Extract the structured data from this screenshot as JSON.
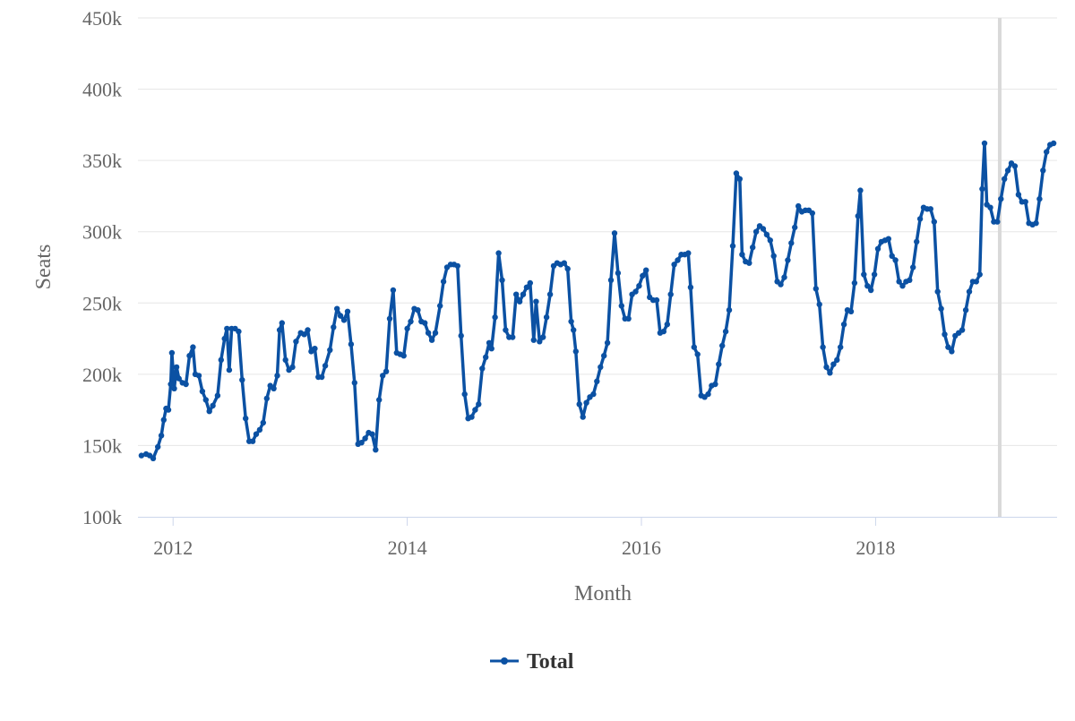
{
  "chart_data": {
    "type": "line",
    "xlabel": "Month",
    "ylabel": "Seats",
    "ylim": [
      100000,
      450000
    ],
    "xlim": [
      2011.7,
      2019.55
    ],
    "y_ticks": [
      {
        "value": 100000,
        "label": "100k"
      },
      {
        "value": 150000,
        "label": "150k"
      },
      {
        "value": 200000,
        "label": "200k"
      },
      {
        "value": 250000,
        "label": "250k"
      },
      {
        "value": 300000,
        "label": "300k"
      },
      {
        "value": 350000,
        "label": "350k"
      },
      {
        "value": 400000,
        "label": "400k"
      },
      {
        "value": 450000,
        "label": "450k"
      }
    ],
    "x_ticks": [
      {
        "value": 2012,
        "label": "2012"
      },
      {
        "value": 2014,
        "label": "2014"
      },
      {
        "value": 2016,
        "label": "2016"
      },
      {
        "value": 2018,
        "label": "2018"
      }
    ],
    "grid": "horizontal",
    "legend_position": "bottom-center",
    "vertical_marker_x": 2019.06,
    "series": [
      {
        "name": "Total",
        "color": "#0b51a3",
        "points": [
          [
            2011.73,
            143000
          ],
          [
            2011.77,
            144000
          ],
          [
            2011.8,
            143000
          ],
          [
            2011.83,
            141000
          ],
          [
            2011.87,
            149000
          ],
          [
            2011.9,
            157000
          ],
          [
            2011.92,
            168000
          ],
          [
            2011.94,
            176000
          ],
          [
            2011.96,
            175000
          ],
          [
            2011.98,
            193000
          ],
          [
            2011.99,
            215000
          ],
          [
            2012.01,
            190000
          ],
          [
            2012.03,
            205000
          ],
          [
            2012.05,
            197000
          ],
          [
            2012.08,
            194000
          ],
          [
            2012.11,
            193000
          ],
          [
            2012.14,
            213000
          ],
          [
            2012.17,
            219000
          ],
          [
            2012.19,
            200000
          ],
          [
            2012.22,
            199000
          ],
          [
            2012.25,
            188000
          ],
          [
            2012.28,
            182000
          ],
          [
            2012.31,
            174000
          ],
          [
            2012.34,
            178000
          ],
          [
            2012.38,
            185000
          ],
          [
            2012.41,
            210000
          ],
          [
            2012.44,
            225000
          ],
          [
            2012.46,
            232000
          ],
          [
            2012.48,
            203000
          ],
          [
            2012.5,
            232000
          ],
          [
            2012.53,
            232000
          ],
          [
            2012.56,
            230000
          ],
          [
            2012.59,
            196000
          ],
          [
            2012.62,
            169000
          ],
          [
            2012.65,
            153000
          ],
          [
            2012.68,
            153000
          ],
          [
            2012.71,
            158000
          ],
          [
            2012.74,
            161000
          ],
          [
            2012.77,
            166000
          ],
          [
            2012.8,
            183000
          ],
          [
            2012.83,
            192000
          ],
          [
            2012.86,
            190000
          ],
          [
            2012.89,
            199000
          ],
          [
            2012.91,
            231000
          ],
          [
            2012.93,
            236000
          ],
          [
            2012.96,
            210000
          ],
          [
            2012.99,
            203000
          ],
          [
            2013.02,
            205000
          ],
          [
            2013.05,
            223000
          ],
          [
            2013.09,
            229000
          ],
          [
            2013.12,
            228000
          ],
          [
            2013.15,
            231000
          ],
          [
            2013.18,
            216000
          ],
          [
            2013.21,
            218000
          ],
          [
            2013.24,
            198000
          ],
          [
            2013.27,
            198000
          ],
          [
            2013.3,
            206000
          ],
          [
            2013.34,
            217000
          ],
          [
            2013.37,
            233000
          ],
          [
            2013.4,
            246000
          ],
          [
            2013.43,
            241000
          ],
          [
            2013.46,
            238000
          ],
          [
            2013.49,
            244000
          ],
          [
            2013.52,
            221000
          ],
          [
            2013.55,
            194000
          ],
          [
            2013.58,
            151000
          ],
          [
            2013.61,
            152000
          ],
          [
            2013.64,
            155000
          ],
          [
            2013.67,
            159000
          ],
          [
            2013.7,
            158000
          ],
          [
            2013.73,
            147000
          ],
          [
            2013.76,
            182000
          ],
          [
            2013.79,
            199000
          ],
          [
            2013.82,
            202000
          ],
          [
            2013.85,
            239000
          ],
          [
            2013.88,
            259000
          ],
          [
            2013.91,
            215000
          ],
          [
            2013.94,
            214000
          ],
          [
            2013.97,
            213000
          ],
          [
            2014.0,
            232000
          ],
          [
            2014.03,
            237000
          ],
          [
            2014.06,
            246000
          ],
          [
            2014.09,
            245000
          ],
          [
            2014.12,
            237000
          ],
          [
            2014.15,
            236000
          ],
          [
            2014.18,
            229000
          ],
          [
            2014.21,
            224000
          ],
          [
            2014.24,
            229000
          ],
          [
            2014.28,
            248000
          ],
          [
            2014.31,
            265000
          ],
          [
            2014.34,
            275000
          ],
          [
            2014.37,
            277000
          ],
          [
            2014.4,
            277000
          ],
          [
            2014.43,
            276000
          ],
          [
            2014.46,
            227000
          ],
          [
            2014.49,
            186000
          ],
          [
            2014.52,
            169000
          ],
          [
            2014.55,
            170000
          ],
          [
            2014.58,
            175000
          ],
          [
            2014.61,
            179000
          ],
          [
            2014.64,
            204000
          ],
          [
            2014.67,
            212000
          ],
          [
            2014.7,
            222000
          ],
          [
            2014.72,
            218000
          ],
          [
            2014.75,
            240000
          ],
          [
            2014.78,
            285000
          ],
          [
            2014.81,
            266000
          ],
          [
            2014.84,
            231000
          ],
          [
            2014.87,
            226000
          ],
          [
            2014.9,
            226000
          ],
          [
            2014.93,
            256000
          ],
          [
            2014.96,
            251000
          ],
          [
            2014.99,
            256000
          ],
          [
            2015.02,
            261000
          ],
          [
            2015.05,
            264000
          ],
          [
            2015.08,
            224000
          ],
          [
            2015.1,
            251000
          ],
          [
            2015.13,
            223000
          ],
          [
            2015.16,
            226000
          ],
          [
            2015.19,
            240000
          ],
          [
            2015.22,
            256000
          ],
          [
            2015.25,
            276000
          ],
          [
            2015.28,
            278000
          ],
          [
            2015.31,
            277000
          ],
          [
            2015.34,
            278000
          ],
          [
            2015.37,
            274000
          ],
          [
            2015.4,
            237000
          ],
          [
            2015.42,
            231000
          ],
          [
            2015.44,
            216000
          ],
          [
            2015.47,
            179000
          ],
          [
            2015.5,
            170000
          ],
          [
            2015.53,
            180000
          ],
          [
            2015.56,
            184000
          ],
          [
            2015.59,
            186000
          ],
          [
            2015.62,
            195000
          ],
          [
            2015.65,
            205000
          ],
          [
            2015.68,
            213000
          ],
          [
            2015.71,
            222000
          ],
          [
            2015.74,
            266000
          ],
          [
            2015.77,
            299000
          ],
          [
            2015.8,
            271000
          ],
          [
            2015.83,
            248000
          ],
          [
            2015.86,
            239000
          ],
          [
            2015.89,
            239000
          ],
          [
            2015.92,
            256000
          ],
          [
            2015.95,
            258000
          ],
          [
            2015.98,
            262000
          ],
          [
            2016.01,
            269000
          ],
          [
            2016.04,
            273000
          ],
          [
            2016.07,
            254000
          ],
          [
            2016.1,
            252000
          ],
          [
            2016.13,
            252000
          ],
          [
            2016.16,
            229000
          ],
          [
            2016.19,
            230000
          ],
          [
            2016.22,
            235000
          ],
          [
            2016.25,
            256000
          ],
          [
            2016.28,
            277000
          ],
          [
            2016.31,
            280000
          ],
          [
            2016.34,
            284000
          ],
          [
            2016.37,
            284000
          ],
          [
            2016.4,
            285000
          ],
          [
            2016.42,
            261000
          ],
          [
            2016.45,
            219000
          ],
          [
            2016.48,
            214000
          ],
          [
            2016.51,
            185000
          ],
          [
            2016.54,
            184000
          ],
          [
            2016.57,
            186000
          ],
          [
            2016.6,
            192000
          ],
          [
            2016.63,
            193000
          ],
          [
            2016.66,
            207000
          ],
          [
            2016.69,
            220000
          ],
          [
            2016.72,
            230000
          ],
          [
            2016.75,
            245000
          ],
          [
            2016.78,
            290000
          ],
          [
            2016.81,
            341000
          ],
          [
            2016.84,
            337000
          ],
          [
            2016.86,
            284000
          ],
          [
            2016.89,
            279000
          ],
          [
            2016.92,
            278000
          ],
          [
            2016.95,
            289000
          ],
          [
            2016.98,
            300000
          ],
          [
            2017.01,
            304000
          ],
          [
            2017.04,
            302000
          ],
          [
            2017.07,
            298000
          ],
          [
            2017.1,
            294000
          ],
          [
            2017.13,
            283000
          ],
          [
            2017.16,
            265000
          ],
          [
            2017.19,
            263000
          ],
          [
            2017.22,
            268000
          ],
          [
            2017.25,
            280000
          ],
          [
            2017.28,
            292000
          ],
          [
            2017.31,
            303000
          ],
          [
            2017.34,
            318000
          ],
          [
            2017.37,
            314000
          ],
          [
            2017.4,
            315000
          ],
          [
            2017.43,
            315000
          ],
          [
            2017.46,
            313000
          ],
          [
            2017.49,
            260000
          ],
          [
            2017.52,
            249000
          ],
          [
            2017.55,
            219000
          ],
          [
            2017.58,
            205000
          ],
          [
            2017.61,
            201000
          ],
          [
            2017.64,
            207000
          ],
          [
            2017.67,
            210000
          ],
          [
            2017.7,
            219000
          ],
          [
            2017.73,
            235000
          ],
          [
            2017.76,
            245000
          ],
          [
            2017.79,
            244000
          ],
          [
            2017.82,
            264000
          ],
          [
            2017.85,
            311000
          ],
          [
            2017.87,
            329000
          ],
          [
            2017.9,
            270000
          ],
          [
            2017.93,
            262000
          ],
          [
            2017.96,
            259000
          ],
          [
            2017.99,
            270000
          ],
          [
            2018.02,
            288000
          ],
          [
            2018.05,
            293000
          ],
          [
            2018.08,
            294000
          ],
          [
            2018.11,
            295000
          ],
          [
            2018.14,
            283000
          ],
          [
            2018.17,
            280000
          ],
          [
            2018.2,
            265000
          ],
          [
            2018.23,
            262000
          ],
          [
            2018.26,
            265000
          ],
          [
            2018.29,
            266000
          ],
          [
            2018.32,
            275000
          ],
          [
            2018.35,
            293000
          ],
          [
            2018.38,
            309000
          ],
          [
            2018.41,
            317000
          ],
          [
            2018.44,
            316000
          ],
          [
            2018.47,
            316000
          ],
          [
            2018.5,
            307000
          ],
          [
            2018.53,
            258000
          ],
          [
            2018.56,
            246000
          ],
          [
            2018.59,
            228000
          ],
          [
            2018.62,
            219000
          ],
          [
            2018.65,
            216000
          ],
          [
            2018.68,
            227000
          ],
          [
            2018.71,
            229000
          ],
          [
            2018.74,
            231000
          ],
          [
            2018.77,
            245000
          ],
          [
            2018.8,
            258000
          ],
          [
            2018.83,
            265000
          ],
          [
            2018.86,
            265000
          ],
          [
            2018.89,
            270000
          ],
          [
            2018.91,
            330000
          ],
          [
            2018.93,
            362000
          ],
          [
            2018.95,
            319000
          ],
          [
            2018.98,
            317000
          ],
          [
            2019.01,
            307000
          ],
          [
            2019.04,
            307000
          ],
          [
            2019.07,
            323000
          ],
          [
            2019.1,
            337000
          ],
          [
            2019.13,
            343000
          ],
          [
            2019.16,
            348000
          ],
          [
            2019.19,
            346000
          ],
          [
            2019.22,
            326000
          ],
          [
            2019.25,
            321000
          ],
          [
            2019.28,
            321000
          ],
          [
            2019.31,
            306000
          ],
          [
            2019.34,
            305000
          ],
          [
            2019.37,
            306000
          ],
          [
            2019.4,
            323000
          ],
          [
            2019.43,
            343000
          ],
          [
            2019.46,
            356000
          ],
          [
            2019.49,
            361000
          ],
          [
            2019.52,
            362000
          ]
        ]
      }
    ]
  }
}
